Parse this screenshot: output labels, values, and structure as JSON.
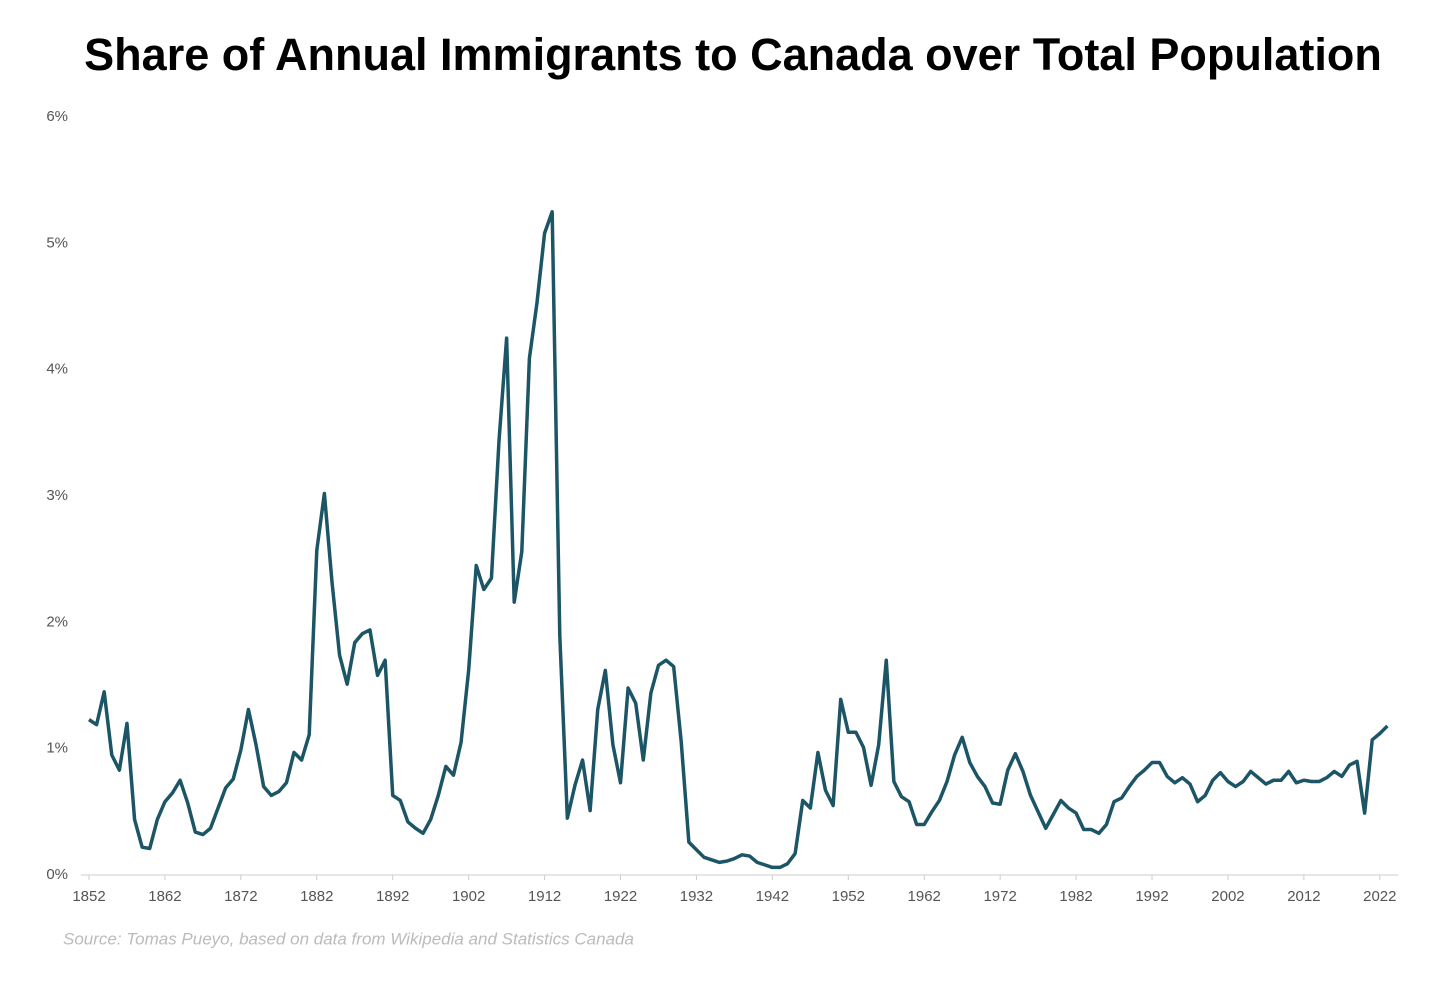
{
  "chart_data": {
    "type": "line",
    "title": "Share of Annual Immigrants to Canada over Total Population",
    "source": "Source: Tomas Pueyo, based on data from Wikipedia and Statistics Canada",
    "x": [
      1852,
      1853,
      1854,
      1855,
      1856,
      1857,
      1858,
      1859,
      1860,
      1861,
      1862,
      1863,
      1864,
      1865,
      1866,
      1867,
      1868,
      1869,
      1870,
      1871,
      1872,
      1873,
      1874,
      1875,
      1876,
      1877,
      1878,
      1879,
      1880,
      1881,
      1882,
      1883,
      1884,
      1885,
      1886,
      1887,
      1888,
      1889,
      1890,
      1891,
      1892,
      1893,
      1894,
      1895,
      1896,
      1897,
      1898,
      1899,
      1900,
      1901,
      1902,
      1903,
      1904,
      1905,
      1906,
      1907,
      1908,
      1909,
      1910,
      1911,
      1912,
      1913,
      1914,
      1915,
      1916,
      1917,
      1918,
      1919,
      1920,
      1921,
      1922,
      1923,
      1924,
      1925,
      1926,
      1927,
      1928,
      1929,
      1930,
      1931,
      1932,
      1933,
      1934,
      1935,
      1936,
      1937,
      1938,
      1939,
      1940,
      1941,
      1942,
      1943,
      1944,
      1945,
      1946,
      1947,
      1948,
      1949,
      1950,
      1951,
      1952,
      1953,
      1954,
      1955,
      1956,
      1957,
      1958,
      1959,
      1960,
      1961,
      1962,
      1963,
      1964,
      1965,
      1966,
      1967,
      1968,
      1969,
      1970,
      1971,
      1972,
      1973,
      1974,
      1975,
      1976,
      1977,
      1978,
      1979,
      1980,
      1981,
      1982,
      1983,
      1984,
      1985,
      1986,
      1987,
      1988,
      1989,
      1990,
      1991,
      1992,
      1993,
      1994,
      1995,
      1996,
      1997,
      1998,
      1999,
      2000,
      2001,
      2002,
      2003,
      2004,
      2005,
      2006,
      2007,
      2008,
      2009,
      2010,
      2011,
      2012,
      2013,
      2014,
      2015,
      2016,
      2017,
      2018,
      2019,
      2020,
      2021,
      2022,
      2023
    ],
    "series": [
      {
        "color": "#1b5566",
        "values": [
          1.23,
          1.19,
          1.45,
          0.95,
          0.83,
          1.2,
          0.44,
          0.22,
          0.21,
          0.44,
          0.58,
          0.65,
          0.75,
          0.57,
          0.34,
          0.32,
          0.37,
          0.53,
          0.69,
          0.76,
          0.99,
          1.31,
          1.03,
          0.7,
          0.63,
          0.66,
          0.73,
          0.97,
          0.91,
          1.11,
          2.57,
          3.02,
          2.32,
          1.74,
          1.51,
          1.84,
          1.91,
          1.94,
          1.58,
          1.7,
          0.63,
          0.59,
          0.42,
          0.37,
          0.33,
          0.44,
          0.63,
          0.86,
          0.79,
          1.05,
          1.62,
          2.45,
          2.26,
          2.35,
          3.44,
          4.25,
          2.16,
          2.56,
          4.09,
          4.53,
          5.08,
          5.25,
          1.9,
          0.45,
          0.71,
          0.91,
          0.51,
          1.31,
          1.62,
          1.03,
          0.73,
          1.48,
          1.36,
          0.91,
          1.44,
          1.66,
          1.7,
          1.65,
          1.05,
          0.26,
          0.2,
          0.14,
          0.12,
          0.1,
          0.11,
          0.13,
          0.16,
          0.15,
          0.1,
          0.08,
          0.06,
          0.06,
          0.09,
          0.17,
          0.59,
          0.53,
          0.97,
          0.67,
          0.55,
          1.39,
          1.13,
          1.13,
          1.01,
          0.71,
          1.03,
          1.7,
          0.74,
          0.62,
          0.58,
          0.4,
          0.4,
          0.5,
          0.59,
          0.74,
          0.95,
          1.09,
          0.89,
          0.78,
          0.7,
          0.57,
          0.56,
          0.83,
          0.96,
          0.82,
          0.63,
          0.5,
          0.37,
          0.48,
          0.59,
          0.53,
          0.49,
          0.36,
          0.36,
          0.33,
          0.4,
          0.58,
          0.61,
          0.7,
          0.78,
          0.83,
          0.89,
          0.89,
          0.78,
          0.73,
          0.77,
          0.72,
          0.58,
          0.63,
          0.75,
          0.81,
          0.74,
          0.7,
          0.74,
          0.82,
          0.77,
          0.72,
          0.75,
          0.75,
          0.82,
          0.73,
          0.75,
          0.74,
          0.74,
          0.77,
          0.82,
          0.78,
          0.87,
          0.9,
          0.49,
          1.07,
          1.12,
          1.18
        ]
      }
    ],
    "xlim": [
      1852,
      2024
    ],
    "xticks": [
      1852,
      1862,
      1872,
      1882,
      1892,
      1902,
      1912,
      1922,
      1932,
      1942,
      1952,
      1962,
      1972,
      1982,
      1992,
      2002,
      2012,
      2022
    ],
    "ylim": [
      0,
      6
    ],
    "yticks": [
      {
        "value": 0,
        "label": "0%"
      },
      {
        "value": 1,
        "label": "1%"
      },
      {
        "value": 2,
        "label": "2%"
      },
      {
        "value": 3,
        "label": "3%"
      },
      {
        "value": 4,
        "label": "4%"
      },
      {
        "value": 5,
        "label": "5%"
      },
      {
        "value": 6,
        "label": "6%"
      }
    ],
    "grid": false
  }
}
